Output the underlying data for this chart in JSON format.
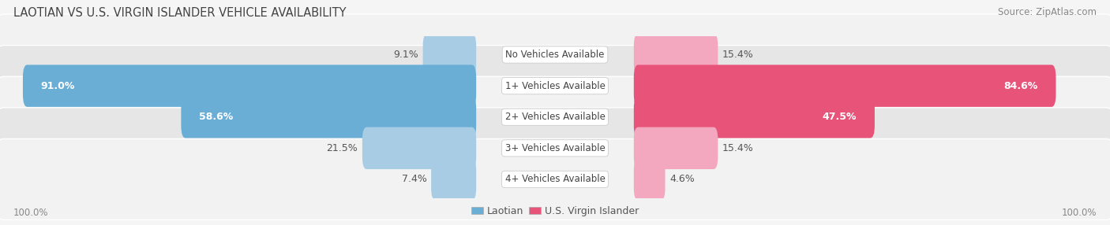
{
  "title": "LAOTIAN VS U.S. VIRGIN ISLANDER VEHICLE AVAILABILITY",
  "source": "Source: ZipAtlas.com",
  "categories": [
    "No Vehicles Available",
    "1+ Vehicles Available",
    "2+ Vehicles Available",
    "3+ Vehicles Available",
    "4+ Vehicles Available"
  ],
  "laotian_values": [
    9.1,
    91.0,
    58.6,
    21.5,
    7.4
  ],
  "virgin_values": [
    15.4,
    84.6,
    47.5,
    15.4,
    4.6
  ],
  "laotian_color_large": "#6aaed6",
  "laotian_color_small": "#a8cce4",
  "virgin_color_large": "#e8537a",
  "virgin_color_small": "#f4a8c0",
  "laotian_label": "Laotian",
  "virgin_label": "U.S. Virgin Islander",
  "row_bg_light": "#f2f2f2",
  "row_bg_dark": "#e6e6e6",
  "label_threshold": 30,
  "label_fontsize": 9.0,
  "title_fontsize": 10.5,
  "source_fontsize": 8.5,
  "axis_label_fontsize": 8.5,
  "category_fontsize": 8.5,
  "bg_color": "#f5f5f5"
}
